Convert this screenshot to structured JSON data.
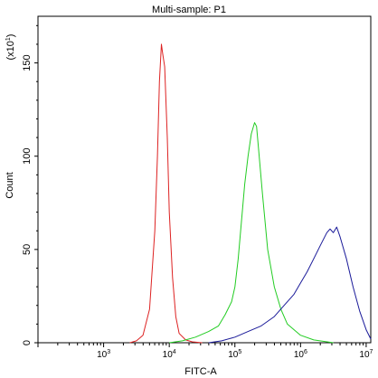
{
  "chart_data": {
    "type": "line",
    "title": "Multi-sample: P1",
    "xlabel": "FITC-A",
    "ylabel": "Count",
    "y_multiplier_label": "(x10",
    "y_multiplier_exp": "1",
    "y_multiplier_close": ")",
    "xscale": "log",
    "xlim_log10": [
      2.0,
      7.07
    ],
    "ylim": [
      0,
      175
    ],
    "x_ticks": [
      {
        "base": "10",
        "exp": "3",
        "log": 3
      },
      {
        "base": "10",
        "exp": "4",
        "log": 4
      },
      {
        "base": "10",
        "exp": "5",
        "log": 5
      },
      {
        "base": "10",
        "exp": "6",
        "log": 6
      },
      {
        "base": "10",
        "exp": "7",
        "log": 7
      }
    ],
    "y_ticks": [
      0,
      50,
      100,
      150
    ],
    "grid": false,
    "legend": "none",
    "series": [
      {
        "color": "#dd2222",
        "points": [
          [
            3.4,
            0
          ],
          [
            3.5,
            1
          ],
          [
            3.6,
            4
          ],
          [
            3.7,
            18
          ],
          [
            3.78,
            60
          ],
          [
            3.82,
            100
          ],
          [
            3.85,
            140
          ],
          [
            3.88,
            160
          ],
          [
            3.9,
            155
          ],
          [
            3.93,
            148
          ],
          [
            3.97,
            110
          ],
          [
            4.0,
            70
          ],
          [
            4.05,
            35
          ],
          [
            4.1,
            14
          ],
          [
            4.15,
            5
          ],
          [
            4.25,
            1.5
          ],
          [
            4.35,
            0.5
          ],
          [
            4.5,
            0
          ]
        ]
      },
      {
        "color": "#22cc22",
        "points": [
          [
            4.0,
            0
          ],
          [
            4.2,
            1
          ],
          [
            4.4,
            3
          ],
          [
            4.6,
            6
          ],
          [
            4.75,
            9
          ],
          [
            4.85,
            15
          ],
          [
            4.95,
            22
          ],
          [
            5.0,
            30
          ],
          [
            5.05,
            45
          ],
          [
            5.1,
            65
          ],
          [
            5.15,
            85
          ],
          [
            5.2,
            100
          ],
          [
            5.25,
            112
          ],
          [
            5.3,
            118
          ],
          [
            5.33,
            116
          ],
          [
            5.36,
            104
          ],
          [
            5.42,
            80
          ],
          [
            5.5,
            50
          ],
          [
            5.6,
            30
          ],
          [
            5.7,
            18
          ],
          [
            5.8,
            10
          ],
          [
            6.0,
            4
          ],
          [
            6.2,
            1.5
          ],
          [
            6.5,
            0
          ]
        ]
      },
      {
        "color": "#1a1a99",
        "points": [
          [
            4.6,
            0
          ],
          [
            4.8,
            1
          ],
          [
            5.0,
            3
          ],
          [
            5.2,
            6
          ],
          [
            5.4,
            9
          ],
          [
            5.6,
            14
          ],
          [
            5.75,
            20
          ],
          [
            5.9,
            26
          ],
          [
            6.0,
            32
          ],
          [
            6.1,
            38
          ],
          [
            6.2,
            45
          ],
          [
            6.3,
            52
          ],
          [
            6.4,
            59
          ],
          [
            6.45,
            61
          ],
          [
            6.5,
            59
          ],
          [
            6.55,
            62
          ],
          [
            6.6,
            57
          ],
          [
            6.7,
            45
          ],
          [
            6.8,
            30
          ],
          [
            6.9,
            17
          ],
          [
            7.0,
            7
          ],
          [
            7.07,
            2
          ]
        ]
      }
    ]
  }
}
